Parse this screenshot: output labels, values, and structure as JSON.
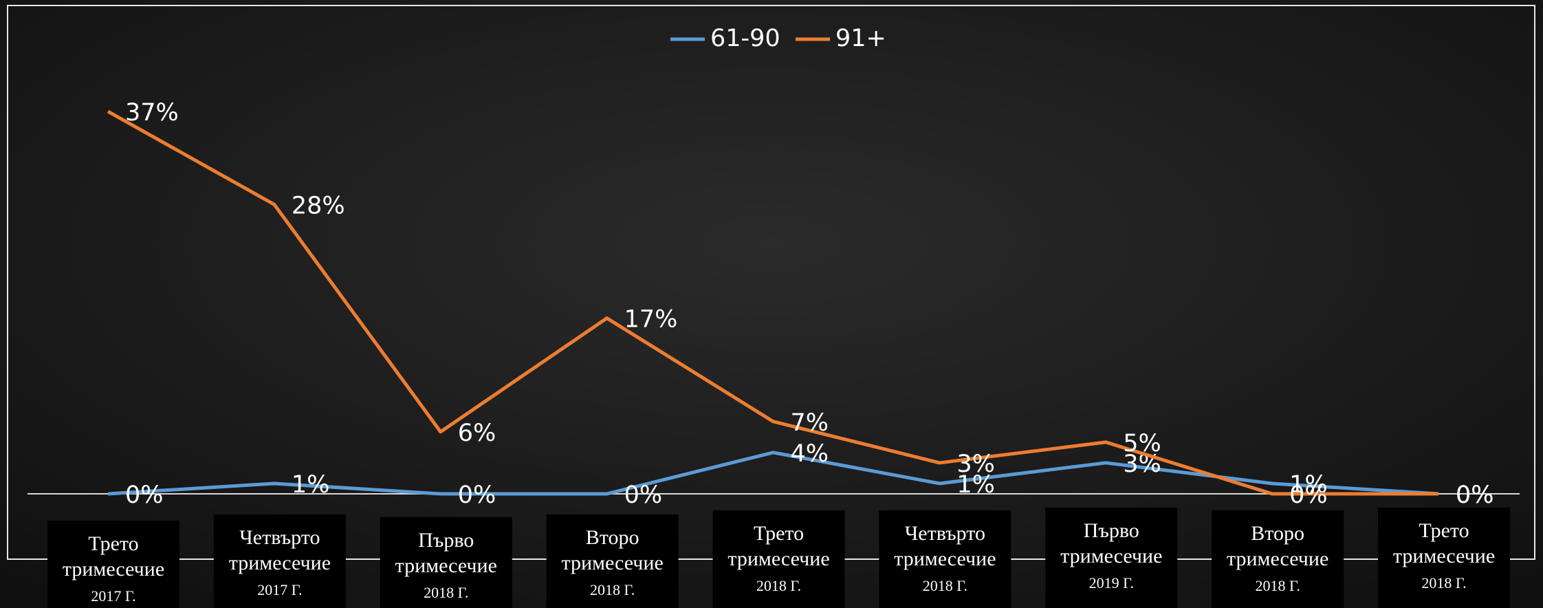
{
  "chart_data": {
    "type": "line",
    "categories": [
      [
        "Трето",
        "тримесечие",
        "2017 Г."
      ],
      [
        "Четвърто",
        "тримесечие",
        "2017 Г."
      ],
      [
        "Първо",
        "тримесечие",
        "2018 Г."
      ],
      [
        "Второ",
        "тримесечие",
        "2018 Г."
      ],
      [
        "Трето",
        "тримесечие",
        "2018 Г."
      ],
      [
        "Четвърто",
        "тримесечие",
        "2018 Г."
      ],
      [
        "Първо",
        "тримесечие",
        "2019 Г."
      ],
      [
        "Второ",
        "тримесечие",
        "2018 Г."
      ],
      [
        "Трето",
        "тримесечие",
        "2018 Г."
      ]
    ],
    "series": [
      {
        "name": "61-90",
        "color": "#5b9bd5",
        "values": [
          0,
          1,
          0,
          0,
          4,
          1,
          3,
          1,
          0
        ],
        "value_labels": [
          "0%",
          "1%",
          "0%",
          "0%",
          "4%",
          "1%",
          "3%",
          "1%",
          "0%"
        ]
      },
      {
        "name": "91+",
        "color": "#ed7d31",
        "values": [
          37,
          28,
          6,
          17,
          7,
          3,
          5,
          0,
          0
        ],
        "value_labels": [
          "37%",
          "28%",
          "6%",
          "17%",
          "7%",
          "3%",
          "5%",
          "0%",
          "0%"
        ]
      }
    ],
    "ylim": [
      0,
      40
    ],
    "grid": false,
    "legend": "top"
  }
}
